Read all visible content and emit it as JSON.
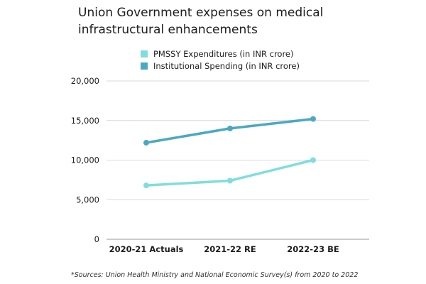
{
  "title_lines": [
    "Union Government expenses on medical",
    "infrastructural enhancements"
  ],
  "footnote": "*Sources: Union Health Ministry and National Economic Survey(s) from 2020 to 2022",
  "chart_data": {
    "type": "line",
    "title": "Union Government expenses on medical infrastructural enhancements",
    "categories": [
      "2020-21 Actuals",
      "2021-22 RE",
      "2022-23 BE"
    ],
    "series": [
      {
        "name": "PMSSY Expenditures (in INR crore)",
        "values": [
          6800,
          7400,
          10000
        ],
        "color": "#7fdedd"
      },
      {
        "name": "Institutional Spending (in INR crore)",
        "values": [
          12200,
          14000,
          15200
        ],
        "color": "#4aa9c2"
      }
    ],
    "y_ticks": [
      "0",
      "5,000",
      "10,000",
      "15,000",
      "20,000"
    ],
    "ylim": [
      0,
      20000
    ],
    "grid": true,
    "legend_position": "top"
  }
}
